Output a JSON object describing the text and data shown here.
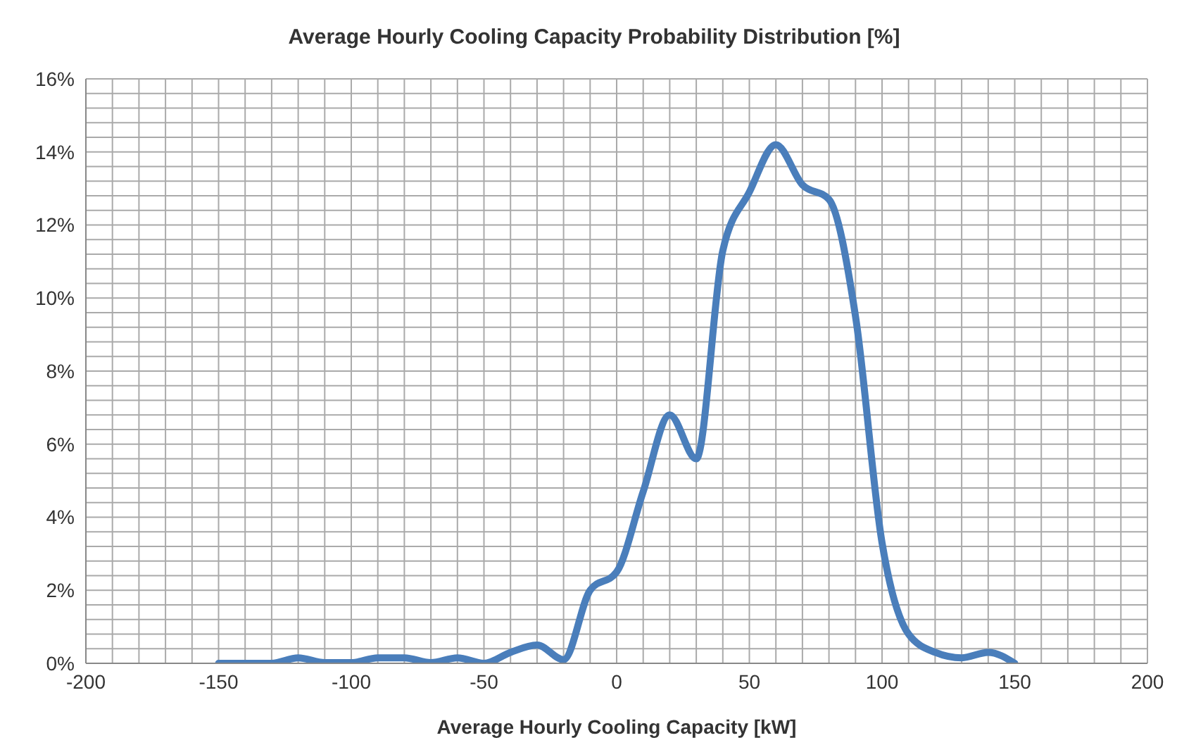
{
  "chart_data": {
    "type": "line",
    "title": "Average Hourly Cooling Capacity Probability Distribution [%]",
    "xlabel": "Average Hourly Cooling Capacity [kW]",
    "x": [
      -150,
      -140,
      -130,
      -120,
      -110,
      -100,
      -90,
      -80,
      -70,
      -60,
      -50,
      -40,
      -30,
      -20,
      -10,
      0,
      10,
      20,
      30,
      40,
      50,
      60,
      70,
      80,
      90,
      100,
      110,
      120,
      130,
      140,
      150
    ],
    "series": [
      {
        "color": "#4a7ebb",
        "values": [
          0,
          0,
          0,
          0.15,
          0.02,
          0.02,
          0.15,
          0.15,
          0.02,
          0.15,
          0,
          0.3,
          0.5,
          0.1,
          2,
          2.5,
          4.7,
          6.8,
          5.6,
          11.3,
          12.9,
          14.2,
          13.1,
          12.7,
          9.5,
          3.3,
          0.8,
          0.3,
          0.15,
          0.3,
          0
        ]
      }
    ],
    "xlim": [
      -200,
      200
    ],
    "xticks": [
      -200,
      {
        "value": -190,
        "label": null
      },
      {
        "value": -180,
        "label": null
      },
      {
        "value": -170,
        "label": null
      },
      {
        "value": -160,
        "label": null
      },
      -150,
      {
        "value": -140,
        "label": null
      },
      {
        "value": -130,
        "label": null
      },
      {
        "value": -120,
        "label": null
      },
      {
        "value": -110,
        "label": null
      },
      -100,
      {
        "value": -90,
        "label": null
      },
      {
        "value": -80,
        "label": null
      },
      {
        "value": -70,
        "label": null
      },
      {
        "value": -60,
        "label": null
      },
      -50,
      {
        "value": -40,
        "label": null
      },
      {
        "value": -30,
        "label": null
      },
      {
        "value": -20,
        "label": null
      },
      {
        "value": -10,
        "label": null
      },
      0,
      {
        "value": 10,
        "label": null
      },
      {
        "value": 20,
        "label": null
      },
      {
        "value": 30,
        "label": null
      },
      {
        "value": 40,
        "label": null
      },
      50,
      {
        "value": 60,
        "label": null
      },
      {
        "value": 70,
        "label": null
      },
      {
        "value": 80,
        "label": null
      },
      {
        "value": 90,
        "label": null
      },
      100,
      {
        "value": 110,
        "label": null
      },
      {
        "value": 120,
        "label": null
      },
      {
        "value": 130,
        "label": null
      },
      {
        "value": 140,
        "label": null
      },
      150,
      {
        "value": 160,
        "label": null
      },
      {
        "value": 170,
        "label": null
      },
      {
        "value": 180,
        "label": null
      },
      {
        "value": 190,
        "label": null
      },
      200
    ],
    "ylim": [
      0,
      16
    ],
    "yticks": [
      {
        "value": 0,
        "label": "0%"
      },
      {
        "value": 0.4,
        "label": null
      },
      {
        "value": 0.8,
        "label": null
      },
      {
        "value": 1.2,
        "label": null
      },
      {
        "value": 1.6,
        "label": null
      },
      {
        "value": 2,
        "label": "2%"
      },
      {
        "value": 2.4,
        "label": null
      },
      {
        "value": 2.8,
        "label": null
      },
      {
        "value": 3.2,
        "label": null
      },
      {
        "value": 3.6,
        "label": null
      },
      {
        "value": 4,
        "label": "4%"
      },
      {
        "value": 4.4,
        "label": null
      },
      {
        "value": 4.8,
        "label": null
      },
      {
        "value": 5.2,
        "label": null
      },
      {
        "value": 5.6,
        "label": null
      },
      {
        "value": 6,
        "label": "6%"
      },
      {
        "value": 6.4,
        "label": null
      },
      {
        "value": 6.8,
        "label": null
      },
      {
        "value": 7.2,
        "label": null
      },
      {
        "value": 7.6,
        "label": null
      },
      {
        "value": 8,
        "label": "8%"
      },
      {
        "value": 8.4,
        "label": null
      },
      {
        "value": 8.8,
        "label": null
      },
      {
        "value": 9.2,
        "label": null
      },
      {
        "value": 9.6,
        "label": null
      },
      {
        "value": 10,
        "label": "10%"
      },
      {
        "value": 10.4,
        "label": null
      },
      {
        "value": 10.8,
        "label": null
      },
      {
        "value": 11.2,
        "label": null
      },
      {
        "value": 11.6,
        "label": null
      },
      {
        "value": 12,
        "label": "12%"
      },
      {
        "value": 12.4,
        "label": null
      },
      {
        "value": 12.8,
        "label": null
      },
      {
        "value": 13.2,
        "label": null
      },
      {
        "value": 13.6,
        "label": null
      },
      {
        "value": 14,
        "label": "14%"
      },
      {
        "value": 14.4,
        "label": null
      },
      {
        "value": 14.8,
        "label": null
      },
      {
        "value": 15.2,
        "label": null
      },
      {
        "value": 15.6,
        "label": null
      },
      {
        "value": 16,
        "label": "16%"
      }
    ],
    "grid": true,
    "legend": false,
    "marker": "none",
    "line_style": "solid"
  }
}
